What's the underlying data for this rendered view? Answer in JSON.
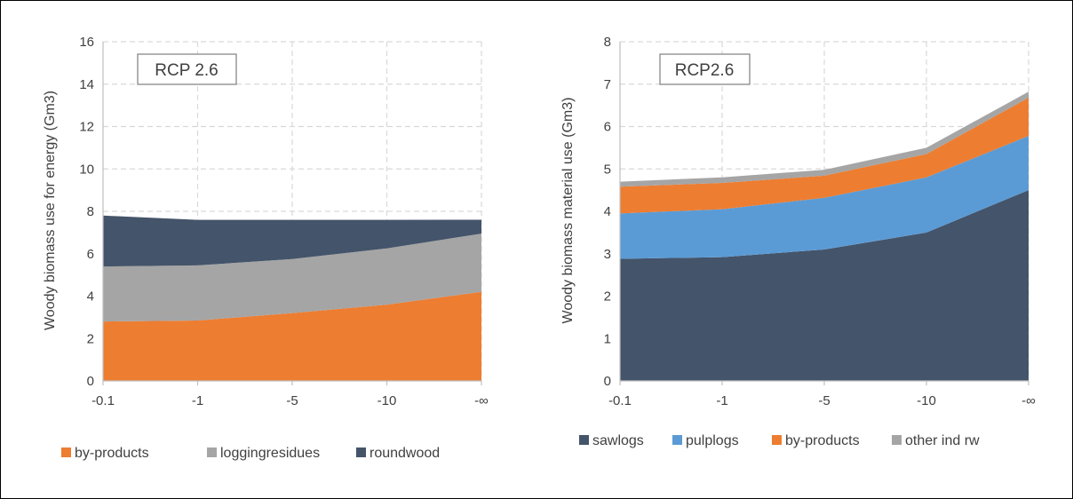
{
  "chart_data": [
    {
      "type": "area",
      "stacked": true,
      "categories": [
        "-0.1",
        "-1",
        "-5",
        "-10",
        "-∞"
      ],
      "ylabel": "Woody biomass use for energy (Gm3)",
      "xlabel": "",
      "ylim": [
        0,
        16
      ],
      "yticks": [
        0,
        2,
        4,
        6,
        8,
        10,
        12,
        14,
        16
      ],
      "grid": true,
      "legend_position": "bottom",
      "annotation": "RCP 2.6",
      "series": [
        {
          "name": "by-products",
          "color": "#ED7D31",
          "values": [
            2.8,
            2.85,
            3.2,
            3.6,
            4.2
          ]
        },
        {
          "name": "loggingresidues",
          "color": "#A5A5A5",
          "values": [
            2.6,
            2.6,
            2.55,
            2.65,
            2.75
          ]
        },
        {
          "name": "roundwood",
          "color": "#44546A",
          "values": [
            2.4,
            2.15,
            1.85,
            1.35,
            0.65
          ]
        }
      ]
    },
    {
      "type": "area",
      "stacked": true,
      "categories": [
        "-0.1",
        "-1",
        "-5",
        "-10",
        "-∞"
      ],
      "ylabel": "Woody biomass material use (Gm3)",
      "xlabel": "",
      "ylim": [
        0,
        8
      ],
      "yticks": [
        0,
        1,
        2,
        3,
        4,
        5,
        6,
        7,
        8
      ],
      "grid": true,
      "legend_position": "bottom",
      "annotation": "RCP2.6",
      "series": [
        {
          "name": "sawlogs",
          "color": "#44546A",
          "values": [
            2.88,
            2.92,
            3.1,
            3.5,
            4.5
          ]
        },
        {
          "name": "pulplogs",
          "color": "#5B9BD5",
          "values": [
            1.07,
            1.13,
            1.22,
            1.3,
            1.28
          ]
        },
        {
          "name": "by-products",
          "color": "#ED7D31",
          "values": [
            0.63,
            0.62,
            0.52,
            0.55,
            0.9
          ]
        },
        {
          "name": "other ind rw",
          "color": "#A5A5A5",
          "values": [
            0.12,
            0.13,
            0.14,
            0.15,
            0.14
          ]
        }
      ]
    }
  ]
}
